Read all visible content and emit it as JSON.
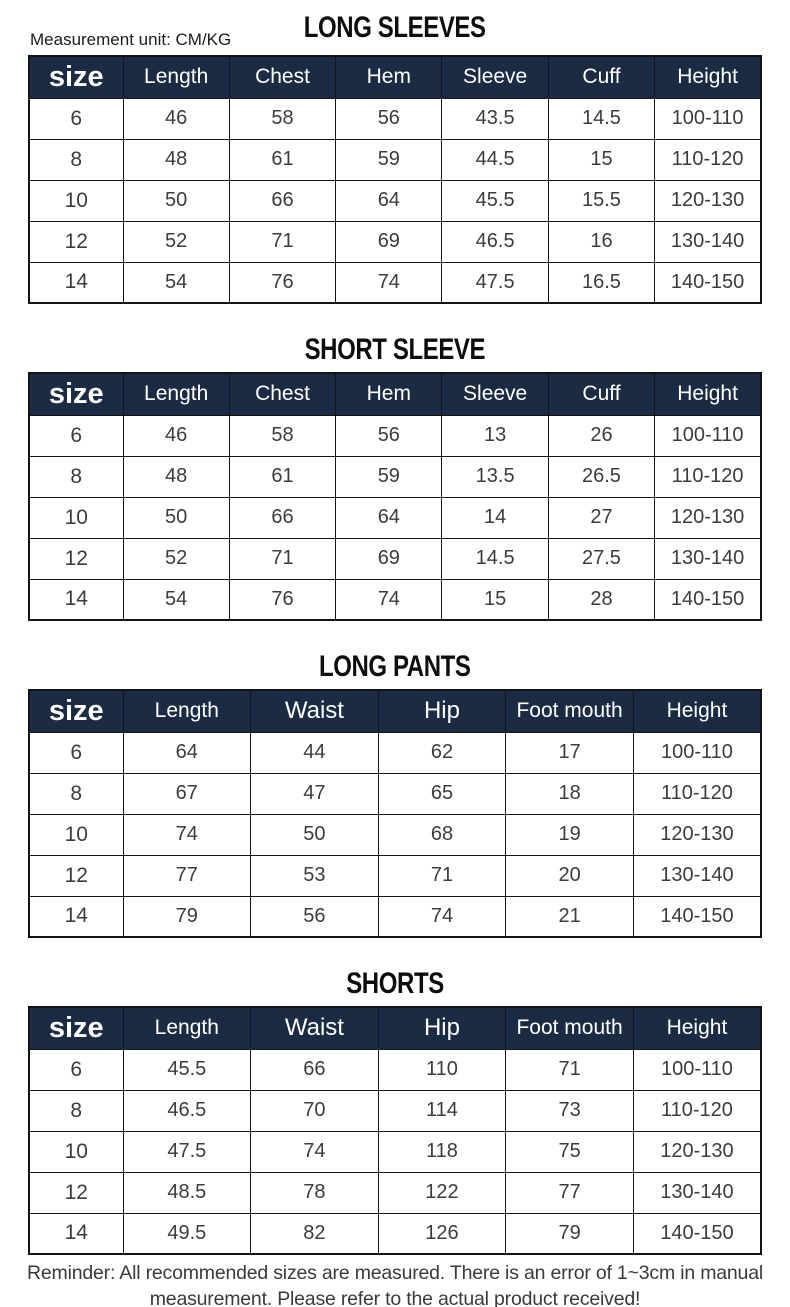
{
  "measurement_unit": "Measurement unit: CM/KG",
  "colors": {
    "header_bg": "#1c2b44",
    "header_text": "#ffffff",
    "cell_text": "#3c3c3c",
    "border": "#141414",
    "title_text": "#0d0d0d",
    "footer_text": "#3a3a3a"
  },
  "tables": [
    {
      "id": "long-sleeves",
      "title": "LONG SLEEVES",
      "headers": [
        "size",
        "Length",
        "Chest",
        "Hem",
        "Sleeve",
        "Cuff",
        "Height"
      ],
      "rows": [
        [
          "6",
          "46",
          "58",
          "56",
          "43.5",
          "14.5",
          "100-110"
        ],
        [
          "8",
          "48",
          "61",
          "59",
          "44.5",
          "15",
          "110-120"
        ],
        [
          "10",
          "50",
          "66",
          "64",
          "45.5",
          "15.5",
          "120-130"
        ],
        [
          "12",
          "52",
          "71",
          "69",
          "46.5",
          "16",
          "130-140"
        ],
        [
          "14",
          "54",
          "76",
          "74",
          "47.5",
          "16.5",
          "140-150"
        ]
      ]
    },
    {
      "id": "short-sleeve",
      "title": "SHORT SLEEVE",
      "headers": [
        "size",
        "Length",
        "Chest",
        "Hem",
        "Sleeve",
        "Cuff",
        "Height"
      ],
      "rows": [
        [
          "6",
          "46",
          "58",
          "56",
          "13",
          "26",
          "100-110"
        ],
        [
          "8",
          "48",
          "61",
          "59",
          "13.5",
          "26.5",
          "110-120"
        ],
        [
          "10",
          "50",
          "66",
          "64",
          "14",
          "27",
          "120-130"
        ],
        [
          "12",
          "52",
          "71",
          "69",
          "14.5",
          "27.5",
          "130-140"
        ],
        [
          "14",
          "54",
          "76",
          "74",
          "15",
          "28",
          "140-150"
        ]
      ]
    },
    {
      "id": "long-pants",
      "title": "LONG PANTS",
      "headers": [
        "size",
        "Length",
        "Waist",
        "Hip",
        "Foot mouth",
        "Height"
      ],
      "rows": [
        [
          "6",
          "64",
          "44",
          "62",
          "17",
          "100-110"
        ],
        [
          "8",
          "67",
          "47",
          "65",
          "18",
          "110-120"
        ],
        [
          "10",
          "74",
          "50",
          "68",
          "19",
          "120-130"
        ],
        [
          "12",
          "77",
          "53",
          "71",
          "20",
          "130-140"
        ],
        [
          "14",
          "79",
          "56",
          "74",
          "21",
          "140-150"
        ]
      ]
    },
    {
      "id": "shorts",
      "title": "SHORTS",
      "headers": [
        "size",
        "Length",
        "Waist",
        "Hip",
        "Foot mouth",
        "Height"
      ],
      "rows": [
        [
          "6",
          "45.5",
          "66",
          "110",
          "71",
          "100-110"
        ],
        [
          "8",
          "46.5",
          "70",
          "114",
          "73",
          "110-120"
        ],
        [
          "10",
          "47.5",
          "74",
          "118",
          "75",
          "120-130"
        ],
        [
          "12",
          "48.5",
          "78",
          "122",
          "77",
          "130-140"
        ],
        [
          "14",
          "49.5",
          "82",
          "126",
          "79",
          "140-150"
        ]
      ]
    }
  ],
  "footer": {
    "text": "Reminder: All recommended sizes are measured. There is an error of 1~3cm in manual measurement. Please refer to the actual product received!"
  }
}
